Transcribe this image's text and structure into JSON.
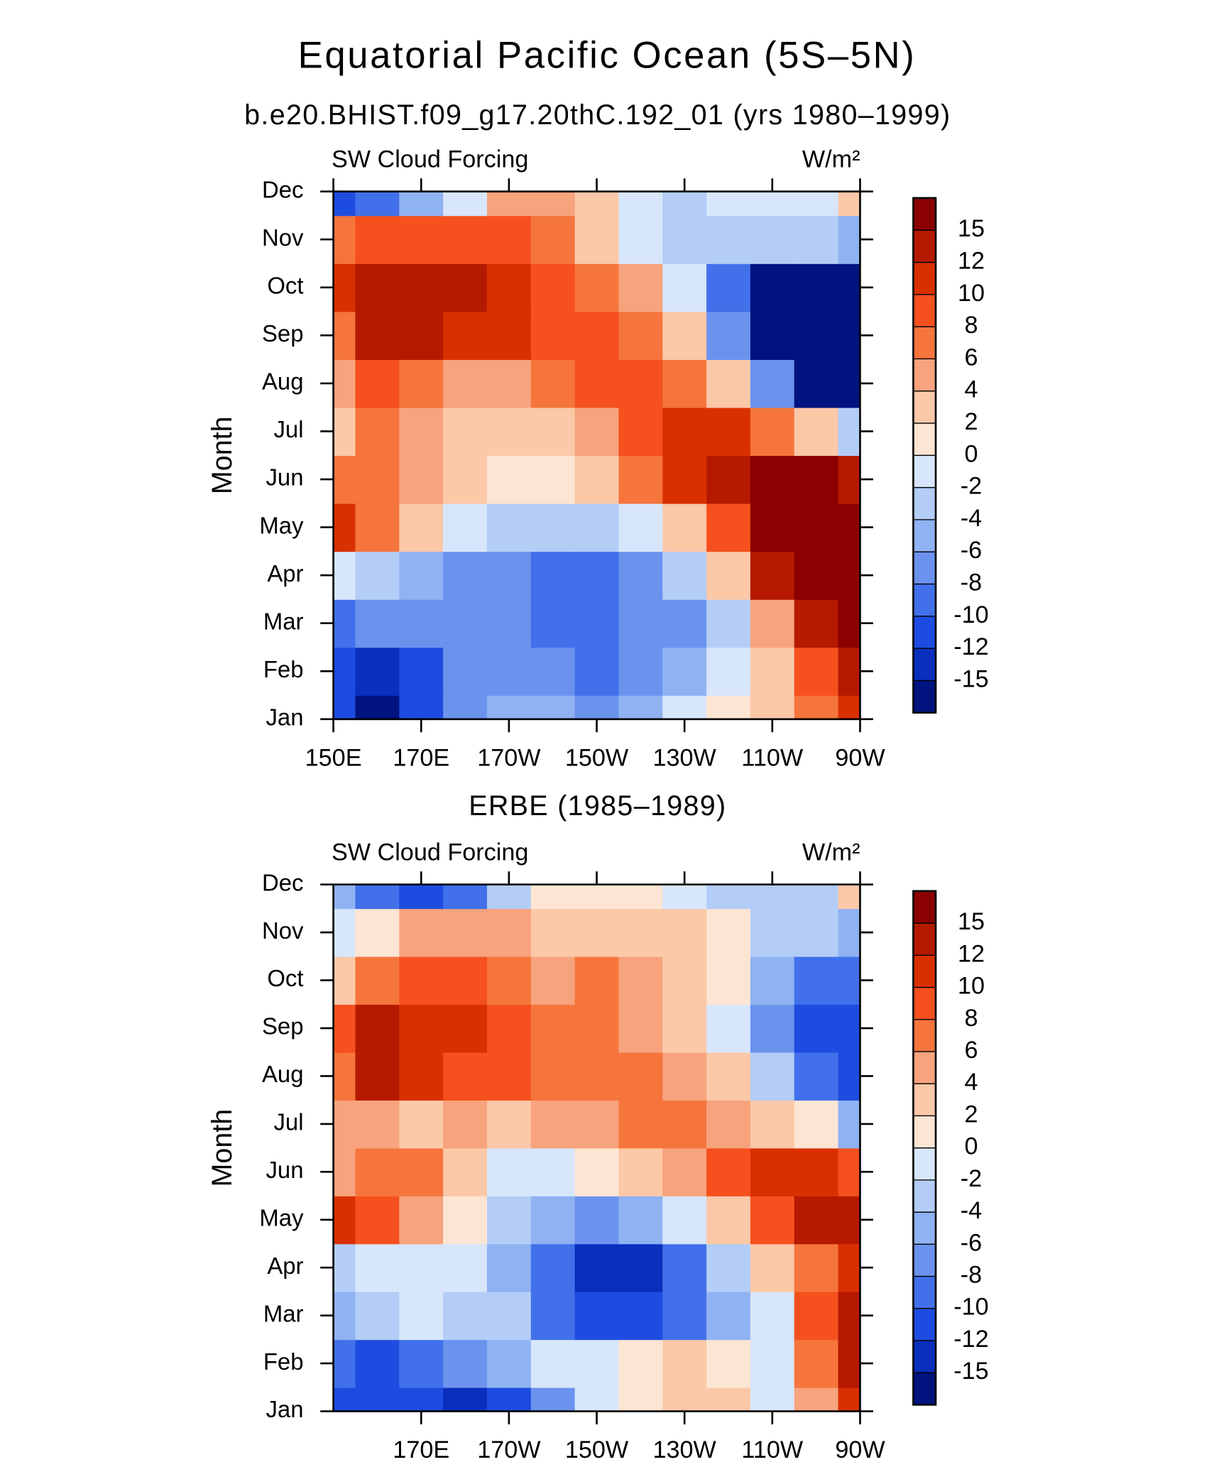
{
  "title": "Equatorial Pacific Ocean (5S–5N)",
  "chart_data": [
    {
      "type": "contour",
      "title": "b.e20.BHIST.f09_g17.20thC.192_01 (yrs 1980–1999)",
      "left_label": "SW Cloud Forcing",
      "right_label": "W/m²",
      "ylabel": "Month",
      "x": [
        150,
        160,
        170,
        180,
        190,
        200,
        210,
        220,
        230,
        240,
        250,
        260,
        270
      ],
      "xlim": [
        150,
        270
      ],
      "xticks": [
        {
          "value": 150,
          "label": "150E"
        },
        {
          "value": 170,
          "label": "170E"
        },
        {
          "value": 190,
          "label": "170W"
        },
        {
          "value": 210,
          "label": "150W"
        },
        {
          "value": 230,
          "label": "130W"
        },
        {
          "value": 250,
          "label": "110W"
        },
        {
          "value": 270,
          "label": "90W"
        }
      ],
      "categories": [
        "Jan",
        "Feb",
        "Mar",
        "Apr",
        "May",
        "Jun",
        "Jul",
        "Aug",
        "Sep",
        "Oct",
        "Nov",
        "Dec"
      ],
      "values": [
        [
          -12,
          -16,
          -12,
          -8,
          -6,
          -6,
          -8,
          -6,
          -2,
          0,
          2,
          6,
          10
        ],
        [
          -12,
          -14,
          -12,
          -8,
          -8,
          -8,
          -10,
          -8,
          -6,
          -2,
          2,
          8,
          14
        ],
        [
          -10,
          -8,
          -8,
          -8,
          -8,
          -10,
          -10,
          -8,
          -8,
          -4,
          4,
          14,
          16
        ],
        [
          -2,
          -4,
          -6,
          -8,
          -8,
          -10,
          -10,
          -8,
          -4,
          2,
          12,
          16,
          17
        ],
        [
          10,
          6,
          2,
          -2,
          -4,
          -4,
          -4,
          -2,
          2,
          8,
          16,
          17,
          17
        ],
        [
          6,
          6,
          4,
          2,
          0,
          0,
          2,
          6,
          10,
          14,
          16,
          16,
          14
        ],
        [
          2,
          6,
          4,
          2,
          2,
          2,
          4,
          8,
          10,
          10,
          6,
          2,
          -4
        ],
        [
          4,
          8,
          6,
          4,
          4,
          6,
          8,
          8,
          6,
          2,
          -8,
          -16,
          -16
        ],
        [
          6,
          12,
          12,
          10,
          10,
          8,
          8,
          6,
          2,
          -8,
          -16,
          -16,
          -16
        ],
        [
          10,
          12,
          12,
          12,
          10,
          8,
          6,
          4,
          -2,
          -10,
          -16,
          -16,
          -16
        ],
        [
          6,
          8,
          8,
          8,
          8,
          6,
          2,
          -2,
          -4,
          -4,
          -4,
          -4,
          -6
        ],
        [
          -12,
          -10,
          -6,
          -2,
          4,
          4,
          2,
          -2,
          -4,
          -2,
          -2,
          -2,
          2
        ]
      ],
      "levels": [
        -15,
        -12,
        -10,
        -8,
        -6,
        -4,
        -2,
        0,
        2,
        4,
        6,
        8,
        10,
        12,
        15
      ],
      "colors": [
        "#00137f",
        "#0a2fbd",
        "#1e4ce0",
        "#4170ea",
        "#6b93ee",
        "#8fb2f2",
        "#b3cdf7",
        "#d7e6fb",
        "#fde5d3",
        "#fbc8a8",
        "#f7a37d",
        "#f5753c",
        "#f5501e",
        "#d93000",
        "#b51a00",
        "#8b0000"
      ]
    },
    {
      "type": "contour",
      "title": "ERBE (1985–1989)",
      "left_label": "SW Cloud Forcing",
      "right_label": "W/m²",
      "ylabel": "Month",
      "x": [
        150,
        160,
        170,
        180,
        190,
        200,
        210,
        220,
        230,
        240,
        250,
        260,
        270
      ],
      "xlim": [
        150,
        270
      ],
      "xticks": [
        {
          "value": 170,
          "label": "170E"
        },
        {
          "value": 190,
          "label": "170W"
        },
        {
          "value": 210,
          "label": "150W"
        },
        {
          "value": 230,
          "label": "130W"
        },
        {
          "value": 250,
          "label": "110W"
        },
        {
          "value": 270,
          "label": "90W"
        }
      ],
      "categories": [
        "Jan",
        "Feb",
        "Mar",
        "Apr",
        "May",
        "Jun",
        "Jul",
        "Aug",
        "Sep",
        "Oct",
        "Nov",
        "Dec"
      ],
      "values": [
        [
          -12,
          -12,
          -12,
          -14,
          -12,
          -8,
          -2,
          0,
          2,
          2,
          -2,
          4,
          10
        ],
        [
          -10,
          -12,
          -10,
          -8,
          -6,
          -2,
          -2,
          0,
          2,
          0,
          -2,
          6,
          14
        ],
        [
          -6,
          -4,
          -2,
          -4,
          -4,
          -10,
          -12,
          -12,
          -10,
          -6,
          -2,
          8,
          14
        ],
        [
          -4,
          -2,
          -2,
          -2,
          -6,
          -10,
          -14,
          -14,
          -10,
          -4,
          2,
          6,
          10
        ],
        [
          10,
          8,
          4,
          0,
          -4,
          -6,
          -8,
          -6,
          -2,
          2,
          8,
          12,
          12
        ],
        [
          4,
          6,
          6,
          2,
          -2,
          -2,
          0,
          2,
          4,
          8,
          10,
          10,
          8
        ],
        [
          4,
          4,
          2,
          4,
          2,
          4,
          4,
          6,
          6,
          4,
          2,
          0,
          -6
        ],
        [
          6,
          12,
          10,
          8,
          8,
          6,
          6,
          6,
          4,
          2,
          -4,
          -10,
          -12
        ],
        [
          8,
          12,
          10,
          10,
          8,
          6,
          6,
          4,
          2,
          -2,
          -8,
          -12,
          -12
        ],
        [
          2,
          6,
          8,
          8,
          6,
          4,
          6,
          4,
          2,
          0,
          -6,
          -10,
          -10
        ],
        [
          -2,
          0,
          4,
          4,
          4,
          2,
          2,
          2,
          2,
          0,
          -4,
          -4,
          -6
        ],
        [
          -6,
          -10,
          -12,
          -10,
          -4,
          0,
          0,
          0,
          -2,
          -4,
          -4,
          -4,
          2
        ]
      ],
      "levels": [
        -15,
        -12,
        -10,
        -8,
        -6,
        -4,
        -2,
        0,
        2,
        4,
        6,
        8,
        10,
        12,
        15
      ],
      "colors": [
        "#00137f",
        "#0a2fbd",
        "#1e4ce0",
        "#4170ea",
        "#6b93ee",
        "#8fb2f2",
        "#b3cdf7",
        "#d7e6fb",
        "#fde5d3",
        "#fbc8a8",
        "#f7a37d",
        "#f5753c",
        "#f5501e",
        "#d93000",
        "#b51a00",
        "#8b0000"
      ]
    }
  ]
}
